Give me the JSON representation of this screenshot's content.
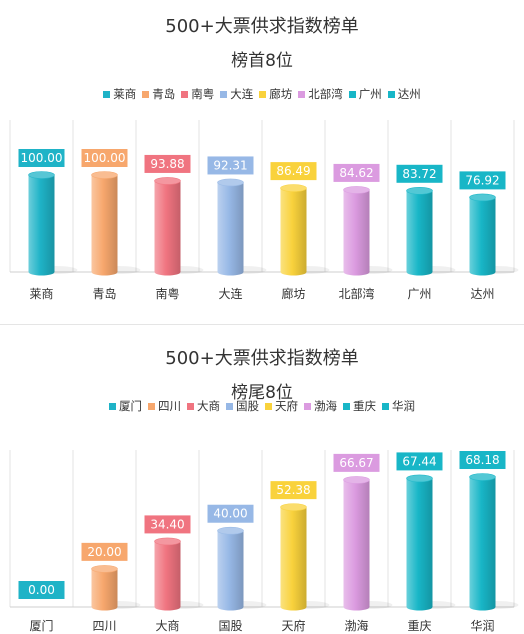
{
  "colors": [
    "#1fb3c7",
    "#f7a76d",
    "#f07480",
    "#97b8e6",
    "#f9d23c",
    "#db9be0",
    "#18b6c7",
    "#18b6c7"
  ],
  "chart_data": [
    {
      "type": "bar",
      "title": "500+大票供求指数榜单",
      "subtitle": "榜首8位",
      "categories": [
        "莱商",
        "青岛",
        "南粤",
        "大连",
        "廊坊",
        "北部湾",
        "广州",
        "达州"
      ],
      "values": [
        100.0,
        100.0,
        93.88,
        92.31,
        86.49,
        84.62,
        83.72,
        76.92
      ],
      "value_labels": [
        "100.00",
        "100.00",
        "93.88",
        "92.31",
        "86.49",
        "84.62",
        "83.72",
        "76.92"
      ],
      "legend": [
        "莱商",
        "青岛",
        "南粤",
        "大连",
        "廊坊",
        "北部湾",
        "广州",
        "达州"
      ],
      "ylim": [
        0,
        100
      ],
      "grid": true,
      "legend_position": "top"
    },
    {
      "type": "bar",
      "title": "500+大票供求指数榜单",
      "subtitle": "榜尾8位",
      "categories": [
        "厦门",
        "四川",
        "大商",
        "国股",
        "天府",
        "渤海",
        "重庆",
        "华润"
      ],
      "values": [
        0.0,
        20.0,
        34.4,
        40.0,
        52.38,
        66.67,
        67.44,
        68.18
      ],
      "value_labels": [
        "0.00",
        "20.00",
        "34.40",
        "40.00",
        "52.38",
        "66.67",
        "67.44",
        "68.18"
      ],
      "legend": [
        "厦门",
        "四川",
        "大商",
        "国股",
        "天府",
        "渤海",
        "重庆",
        "华润"
      ],
      "ylim": [
        0,
        68.18
      ],
      "grid": true,
      "legend_position": "top"
    }
  ]
}
